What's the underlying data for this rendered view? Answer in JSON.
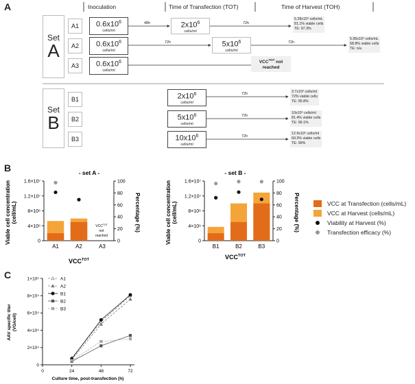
{
  "panel_letters": {
    "a": "A",
    "b": "B",
    "c": "C"
  },
  "panel_a": {
    "headers": {
      "inoculation": "Inoculation",
      "tot": "Time of Transfection (TOT)",
      "toh": "Time of Harvest (TOH)"
    },
    "set_word": "Set",
    "set_a_letter": "A",
    "set_b_letter": "B",
    "cell_unit": "cells/ml",
    "exp10": "6",
    "flasks_a": [
      "A1",
      "A2",
      "A3"
    ],
    "flasks_b": [
      "B1",
      "B2",
      "B3"
    ],
    "inoc_value": "0.6x10",
    "a1_tot": "2x10",
    "a2_tot": "5x10",
    "a1_h1": "48h",
    "a1_h2": "72h",
    "a2_h1": "72h",
    "a2_h2": "72h",
    "b_hours": "72h",
    "vcc_note": {
      "line1_pre": "VCC",
      "line1_sup": "TOT",
      "line1_post": " not",
      "line2": "reached"
    },
    "results_a": [
      [
        "5.28x10⁶ cells/mL",
        "81.1% viable cells",
        "TE: 97.3%"
      ],
      [
        "5.95x10⁶ cells/mL",
        "68.8% viable cells",
        "TE: n/a"
      ]
    ],
    "b_tot": [
      "2x10",
      "5x10",
      "10x10"
    ],
    "results_b": [
      [
        "3.7x10⁶ cells/ml",
        "72% viable cells",
        "TE: 95.8%"
      ],
      [
        "10x10⁶ cells/ml",
        "81.4% viable cells",
        "TE: 99.1%"
      ],
      [
        "12.9x10⁶ cells/ml",
        "69.3% viable cells",
        "TE: 99%"
      ]
    ]
  },
  "panel_b": {
    "title_a": "- set A -",
    "title_b": "- set B -",
    "ylabel_left": "Viable cell concentration",
    "ylabel_left2": "(cell/mL)",
    "ylabel_right": "Percentage (%)",
    "xlabel": "VCC",
    "xlabel_sup": "TOT",
    "left_ticks": [
      "0",
      "4×10⁶",
      "8×10⁶",
      "1.2×10⁷",
      "1.6×10⁷"
    ],
    "right_ticks": [
      "0",
      "20",
      "40",
      "60",
      "80",
      "100"
    ],
    "a3_note": {
      "line1": "VCC",
      "sup": "TOT",
      "line2": "not",
      "line3": "reached"
    },
    "legend": [
      {
        "label": "VCC at Transfection (cells/mL)",
        "color": "#e36c1a"
      },
      {
        "label": "VCC at Harvest (cells/mL)",
        "color": "#f5a43a"
      },
      {
        "label": "Viability at Harvest (%)",
        "color": "#111111"
      },
      {
        "label": "Transfection efficacy (%)",
        "color": "#999999"
      }
    ]
  },
  "chart_data": [
    {
      "type": "bar",
      "title": "- set A -",
      "categories": [
        "A1",
        "A2",
        "A3"
      ],
      "ylim": [
        0,
        16000000
      ],
      "y2lim": [
        0,
        100
      ],
      "series": [
        {
          "name": "VCC at Transfection (cells/mL)",
          "values": [
            2000000,
            5000000,
            null
          ]
        },
        {
          "name": "VCC at Harvest (cells/mL)",
          "values": [
            5280000,
            5950000,
            null
          ]
        },
        {
          "name": "Viability at Harvest (%)",
          "axis": "right",
          "values": [
            81.1,
            68.8,
            null
          ]
        },
        {
          "name": "Transfection efficacy (%)",
          "axis": "right",
          "values": [
            97.3,
            null,
            null
          ]
        }
      ]
    },
    {
      "type": "bar",
      "title": "- set B -",
      "categories": [
        "B1",
        "B2",
        "B3"
      ],
      "ylim": [
        0,
        16000000
      ],
      "y2lim": [
        0,
        100
      ],
      "series": [
        {
          "name": "VCC at Transfection (cells/mL)",
          "values": [
            2000000,
            5000000,
            10000000
          ]
        },
        {
          "name": "VCC at Harvest (cells/mL)",
          "values": [
            3700000,
            10000000,
            12900000
          ]
        },
        {
          "name": "Viability at Harvest (%)",
          "axis": "right",
          "values": [
            72,
            81.4,
            69.3
          ]
        },
        {
          "name": "Transfection efficacy (%)",
          "axis": "right",
          "values": [
            95.8,
            99.1,
            99
          ]
        }
      ]
    },
    {
      "type": "line",
      "xlabel": "Culture time, post-transfection (h)",
      "ylabel": "AAV specific titer",
      "ylabel2": "(VG/cell)",
      "x": [
        24,
        48,
        72
      ],
      "xlim": [
        0,
        72
      ],
      "ylim": [
        0,
        100000
      ],
      "yticks": [
        "0",
        "2×10⁴",
        "4×10⁴",
        "6×10⁴",
        "8×10⁴",
        "1×10⁵"
      ],
      "xticks": [
        "0",
        "24",
        "48",
        "72"
      ],
      "series": [
        {
          "name": "A1",
          "values": [
            8000,
            50000,
            80000
          ]
        },
        {
          "name": "A2",
          "values": [
            6000,
            47000,
            76000
          ]
        },
        {
          "name": "B1",
          "values": [
            7000,
            52000,
            81000
          ]
        },
        {
          "name": "B2",
          "values": [
            4000,
            22000,
            34000
          ]
        },
        {
          "name": "B3",
          "values": [
            5000,
            27000,
            30000
          ]
        }
      ]
    }
  ]
}
